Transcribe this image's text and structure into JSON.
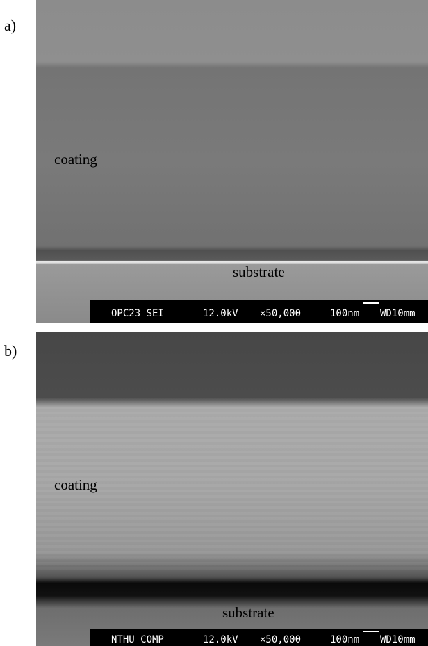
{
  "panels": [
    {
      "label": "a)",
      "annotations": [
        "coating",
        "substrate"
      ],
      "info_bar": [
        "OPC23 SEI",
        "12.0kV",
        "×50,000",
        "100nm",
        "WD10mm"
      ]
    },
    {
      "label": "b)",
      "annotations": [
        "coating",
        "substrate"
      ],
      "info_bar": [
        "NTHU COMP",
        "12.0kV",
        "×50,000",
        "100nm",
        "WD10mm"
      ]
    }
  ]
}
